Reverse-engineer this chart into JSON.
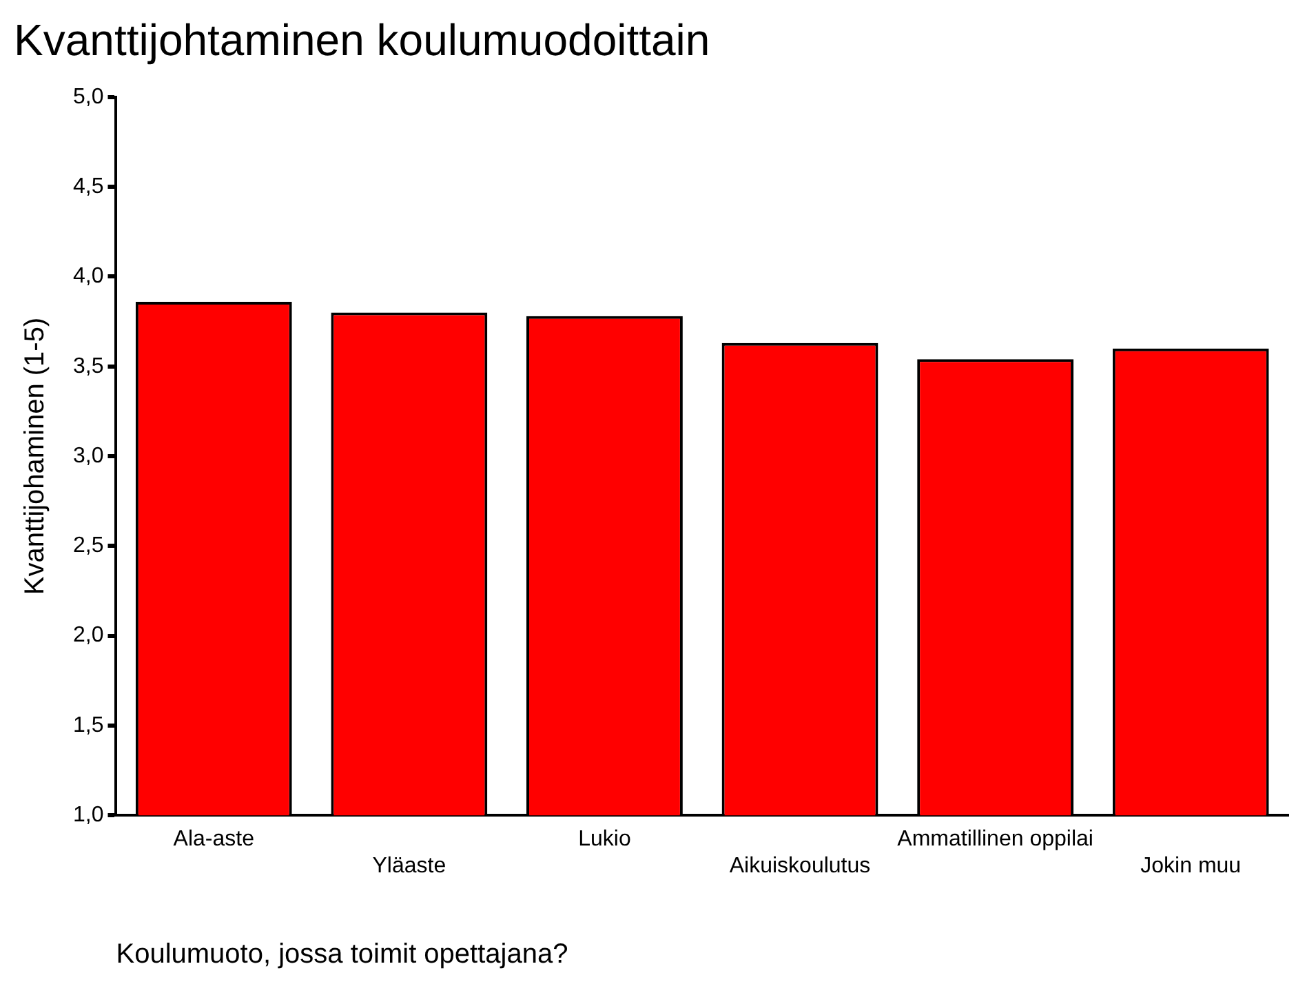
{
  "chart_data": {
    "type": "bar",
    "title": "Kvanttijohtaminen koulumuodoittain",
    "xlabel": "Koulumuoto, jossa toimit opettajana?",
    "ylabel": "Kvanttijohaminen (1-5)",
    "categories": [
      "Ala-aste",
      "Yläaste",
      "Lukio",
      "Aikuiskoulutus",
      "Ammatillinen oppilai",
      "Jokin muu"
    ],
    "values": [
      3.86,
      3.8,
      3.78,
      3.63,
      3.54,
      3.6
    ],
    "color": "#ff0000",
    "ylim": [
      1,
      5
    ],
    "yticks": [
      {
        "value": 1,
        "label": "1,0"
      },
      {
        "value": 1.5,
        "label": "1,5"
      },
      {
        "value": 2,
        "label": "2,0"
      },
      {
        "value": 2.5,
        "label": "2,5"
      },
      {
        "value": 3,
        "label": "3,0"
      },
      {
        "value": 3.5,
        "label": "3,5"
      },
      {
        "value": 4,
        "label": "4,0"
      },
      {
        "value": 4.5,
        "label": "4,5"
      },
      {
        "value": 5,
        "label": "5,0"
      }
    ],
    "grid": false,
    "legend": false
  }
}
